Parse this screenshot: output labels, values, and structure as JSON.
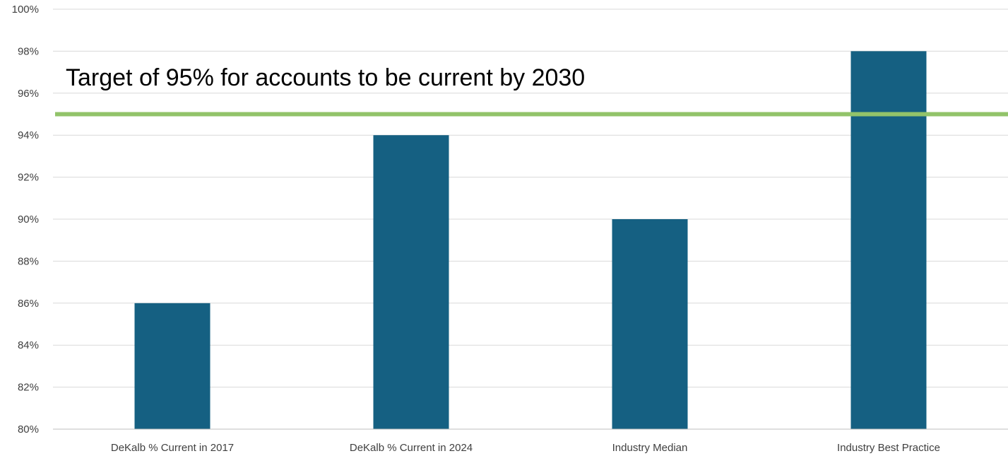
{
  "chart_data": {
    "type": "bar",
    "categories": [
      "DeKalb % Current in 2017",
      "DeKalb % Current in 2024",
      "Industry Median",
      "Industry Best Practice"
    ],
    "values": [
      86,
      94,
      90,
      98
    ],
    "ylim": [
      80,
      100
    ],
    "ytick_step": 2,
    "ytick_labels": [
      "80%",
      "82%",
      "84%",
      "86%",
      "88%",
      "90%",
      "92%",
      "94%",
      "96%",
      "98%",
      "100%"
    ],
    "grid": true,
    "legend": "none",
    "target": {
      "value": 95,
      "label": "Target of 95% for accounts to be current by 2030"
    },
    "colors": {
      "bar": "#156082",
      "target_line": "#92c36a",
      "grid": "#d9d9d9",
      "axis": "#bfbfbf"
    }
  }
}
